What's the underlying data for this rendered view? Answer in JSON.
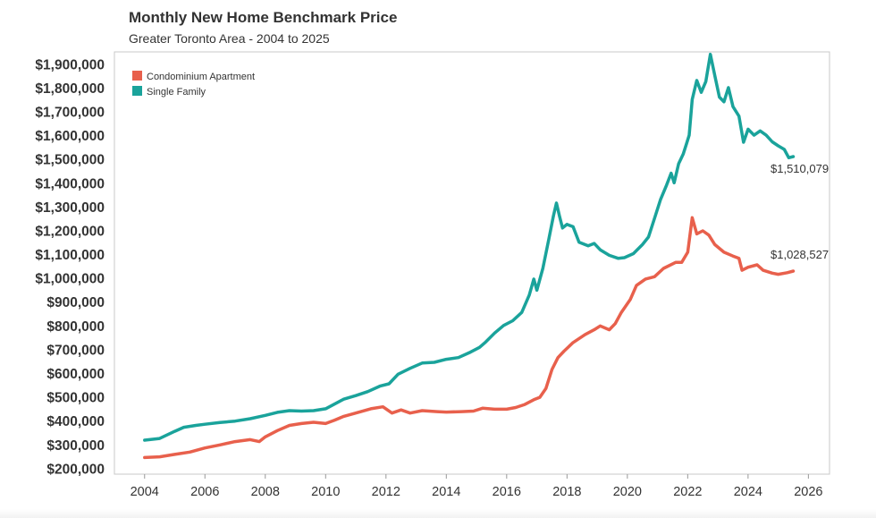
{
  "chart_data": {
    "type": "line",
    "title": "Monthly New Home Benchmark Price",
    "subtitle": "Greater Toronto Area - 2004 to 2025",
    "xlabel": "",
    "ylabel": "",
    "xlim": [
      2003.0,
      2026.7
    ],
    "ylim": [
      175000,
      1950000
    ],
    "x_ticks": [
      "2004",
      "2006",
      "2008",
      "2010",
      "2012",
      "2014",
      "2016",
      "2018",
      "2020",
      "2022",
      "2024",
      "2026"
    ],
    "y_ticks": [
      "$200,000",
      "$300,000",
      "$400,000",
      "$500,000",
      "$600,000",
      "$700,000",
      "$800,000",
      "$900,000",
      "$1,000,000",
      "$1,100,000",
      "$1,200,000",
      "$1,300,000",
      "$1,400,000",
      "$1,500,000",
      "$1,600,000",
      "$1,700,000",
      "$1,800,000",
      "$1,900,000"
    ],
    "grid": false,
    "legend_position": "top-left",
    "series": [
      {
        "name": "Condominium Apartment",
        "color": "#e8604c",
        "end_label": "$1,028,527",
        "points": [
          [
            2004.0,
            245000
          ],
          [
            2004.5,
            248000
          ],
          [
            2005.0,
            258000
          ],
          [
            2005.5,
            268000
          ],
          [
            2006.0,
            285000
          ],
          [
            2006.5,
            298000
          ],
          [
            2007.0,
            312000
          ],
          [
            2007.5,
            320000
          ],
          [
            2007.8,
            312000
          ],
          [
            2008.0,
            332000
          ],
          [
            2008.4,
            358000
          ],
          [
            2008.8,
            380000
          ],
          [
            2009.2,
            388000
          ],
          [
            2009.6,
            393000
          ],
          [
            2010.0,
            388000
          ],
          [
            2010.3,
            402000
          ],
          [
            2010.6,
            418000
          ],
          [
            2011.0,
            432000
          ],
          [
            2011.5,
            450000
          ],
          [
            2011.9,
            458000
          ],
          [
            2012.2,
            432000
          ],
          [
            2012.5,
            445000
          ],
          [
            2012.8,
            432000
          ],
          [
            2013.2,
            442000
          ],
          [
            2013.7,
            438000
          ],
          [
            2014.0,
            436000
          ],
          [
            2014.5,
            438000
          ],
          [
            2014.9,
            440000
          ],
          [
            2015.2,
            452000
          ],
          [
            2015.6,
            448000
          ],
          [
            2016.0,
            448000
          ],
          [
            2016.3,
            455000
          ],
          [
            2016.6,
            468000
          ],
          [
            2016.9,
            488000
          ],
          [
            2017.1,
            498000
          ],
          [
            2017.3,
            535000
          ],
          [
            2017.5,
            615000
          ],
          [
            2017.7,
            665000
          ],
          [
            2017.9,
            692000
          ],
          [
            2018.2,
            728000
          ],
          [
            2018.6,
            762000
          ],
          [
            2018.9,
            782000
          ],
          [
            2019.1,
            798000
          ],
          [
            2019.4,
            782000
          ],
          [
            2019.6,
            808000
          ],
          [
            2019.8,
            855000
          ],
          [
            2020.1,
            910000
          ],
          [
            2020.3,
            968000
          ],
          [
            2020.6,
            995000
          ],
          [
            2020.9,
            1005000
          ],
          [
            2021.2,
            1040000
          ],
          [
            2021.6,
            1065000
          ],
          [
            2021.8,
            1065000
          ],
          [
            2022.0,
            1108000
          ],
          [
            2022.15,
            1253000
          ],
          [
            2022.3,
            1185000
          ],
          [
            2022.5,
            1198000
          ],
          [
            2022.7,
            1180000
          ],
          [
            2022.9,
            1140000
          ],
          [
            2023.2,
            1108000
          ],
          [
            2023.5,
            1092000
          ],
          [
            2023.7,
            1082000
          ],
          [
            2023.8,
            1032000
          ],
          [
            2024.0,
            1045000
          ],
          [
            2024.3,
            1055000
          ],
          [
            2024.5,
            1032000
          ],
          [
            2024.8,
            1020000
          ],
          [
            2025.0,
            1015000
          ],
          [
            2025.3,
            1022000
          ],
          [
            2025.5,
            1028527
          ]
        ]
      },
      {
        "name": "Single Family",
        "color": "#1aa39b",
        "end_label": "$1,510,079",
        "points": [
          [
            2004.0,
            318000
          ],
          [
            2004.5,
            325000
          ],
          [
            2005.0,
            355000
          ],
          [
            2005.3,
            372000
          ],
          [
            2005.7,
            380000
          ],
          [
            2006.0,
            385000
          ],
          [
            2006.5,
            392000
          ],
          [
            2007.0,
            398000
          ],
          [
            2007.5,
            408000
          ],
          [
            2008.0,
            422000
          ],
          [
            2008.4,
            435000
          ],
          [
            2008.8,
            442000
          ],
          [
            2009.2,
            440000
          ],
          [
            2009.6,
            442000
          ],
          [
            2010.0,
            450000
          ],
          [
            2010.3,
            470000
          ],
          [
            2010.6,
            490000
          ],
          [
            2011.0,
            505000
          ],
          [
            2011.4,
            522000
          ],
          [
            2011.8,
            545000
          ],
          [
            2012.1,
            555000
          ],
          [
            2012.4,
            595000
          ],
          [
            2012.8,
            620000
          ],
          [
            2013.2,
            642000
          ],
          [
            2013.6,
            645000
          ],
          [
            2014.0,
            658000
          ],
          [
            2014.4,
            665000
          ],
          [
            2014.8,
            688000
          ],
          [
            2015.1,
            708000
          ],
          [
            2015.3,
            730000
          ],
          [
            2015.6,
            768000
          ],
          [
            2015.9,
            800000
          ],
          [
            2016.2,
            820000
          ],
          [
            2016.5,
            855000
          ],
          [
            2016.75,
            928000
          ],
          [
            2016.9,
            995000
          ],
          [
            2017.0,
            948000
          ],
          [
            2017.2,
            1040000
          ],
          [
            2017.4,
            1165000
          ],
          [
            2017.55,
            1260000
          ],
          [
            2017.65,
            1315000
          ],
          [
            2017.75,
            1260000
          ],
          [
            2017.85,
            1210000
          ],
          [
            2018.0,
            1225000
          ],
          [
            2018.2,
            1215000
          ],
          [
            2018.4,
            1150000
          ],
          [
            2018.7,
            1135000
          ],
          [
            2018.9,
            1145000
          ],
          [
            2019.1,
            1118000
          ],
          [
            2019.4,
            1095000
          ],
          [
            2019.7,
            1082000
          ],
          [
            2019.9,
            1085000
          ],
          [
            2020.2,
            1102000
          ],
          [
            2020.5,
            1140000
          ],
          [
            2020.7,
            1172000
          ],
          [
            2020.9,
            1250000
          ],
          [
            2021.1,
            1330000
          ],
          [
            2021.3,
            1390000
          ],
          [
            2021.45,
            1440000
          ],
          [
            2021.55,
            1400000
          ],
          [
            2021.7,
            1480000
          ],
          [
            2021.85,
            1520000
          ],
          [
            2021.95,
            1560000
          ],
          [
            2022.05,
            1600000
          ],
          [
            2022.15,
            1750000
          ],
          [
            2022.3,
            1830000
          ],
          [
            2022.45,
            1780000
          ],
          [
            2022.6,
            1825000
          ],
          [
            2022.75,
            1940000
          ],
          [
            2022.9,
            1850000
          ],
          [
            2023.05,
            1760000
          ],
          [
            2023.2,
            1740000
          ],
          [
            2023.35,
            1800000
          ],
          [
            2023.5,
            1720000
          ],
          [
            2023.7,
            1680000
          ],
          [
            2023.85,
            1570000
          ],
          [
            2024.0,
            1625000
          ],
          [
            2024.2,
            1600000
          ],
          [
            2024.4,
            1618000
          ],
          [
            2024.6,
            1600000
          ],
          [
            2024.8,
            1572000
          ],
          [
            2025.0,
            1555000
          ],
          [
            2025.2,
            1540000
          ],
          [
            2025.35,
            1505000
          ],
          [
            2025.5,
            1510079
          ]
        ]
      }
    ]
  }
}
